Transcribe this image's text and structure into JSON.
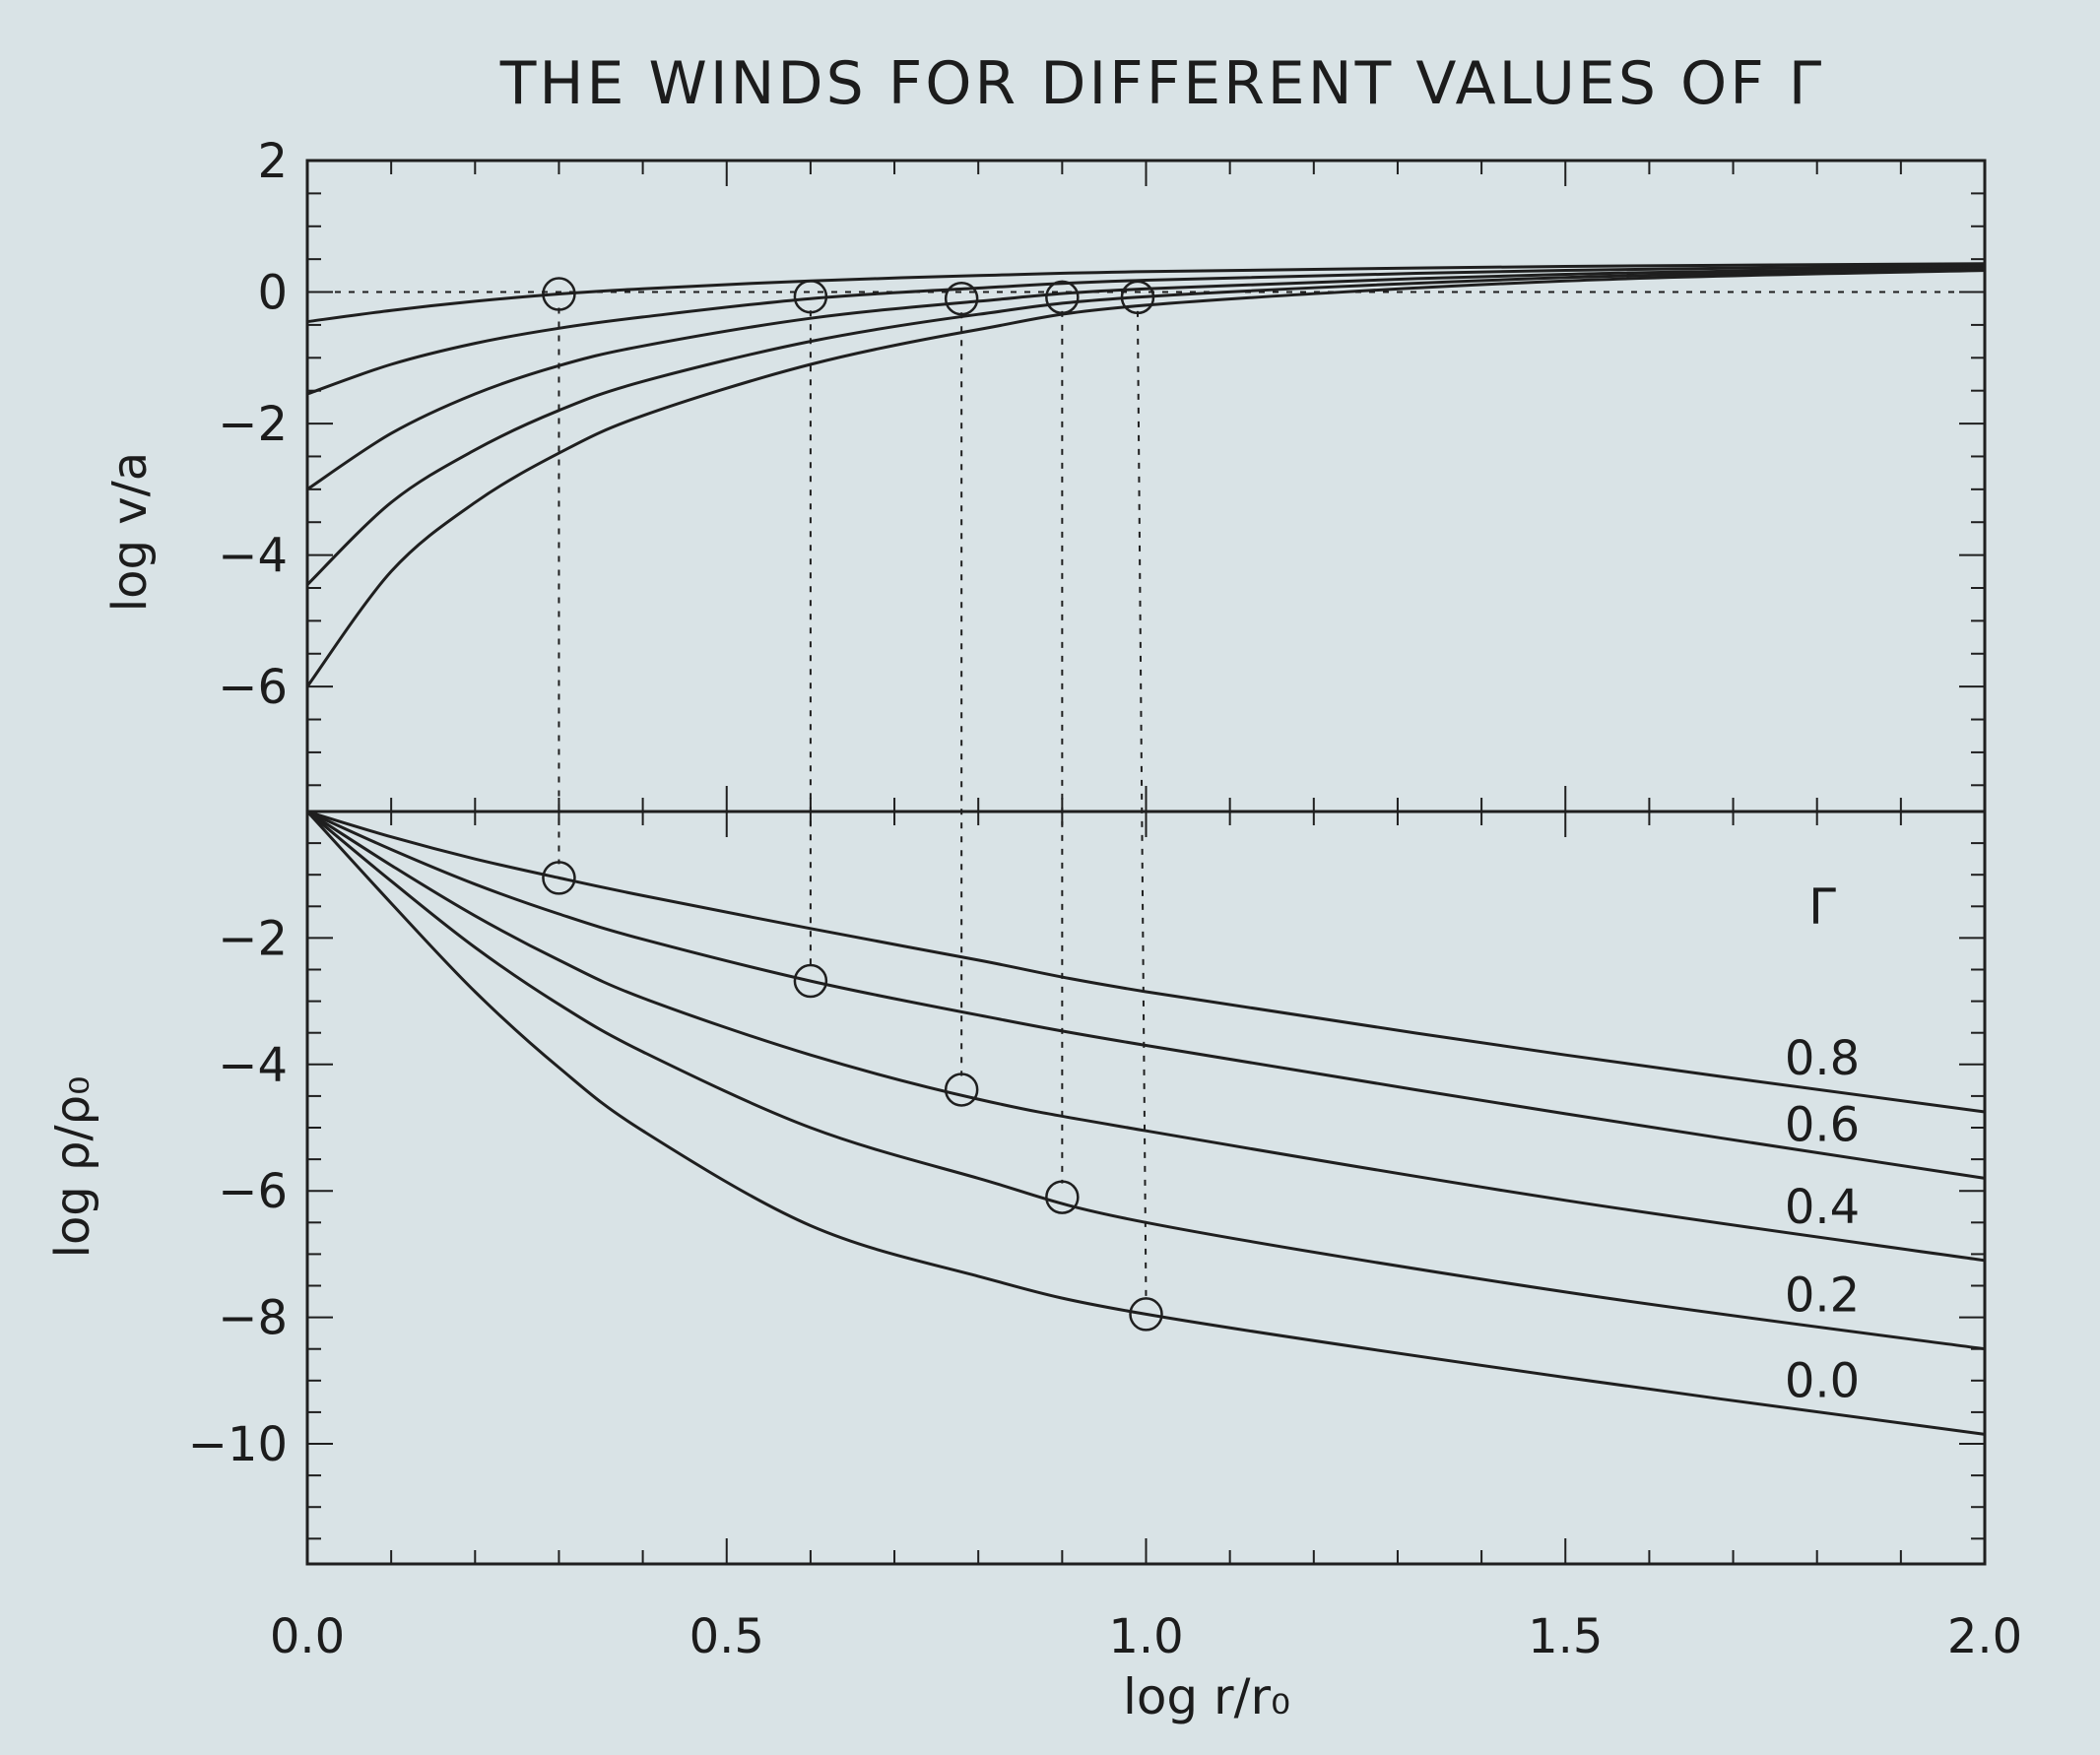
{
  "title": "THE WINDS FOR DIFFERENT VALUES OF Γ",
  "chart_data": [
    {
      "type": "line",
      "panel": "top",
      "ylabel": "log v/a",
      "ylim": [
        -7.9,
        2.0
      ],
      "xlim": [
        0.0,
        2.0
      ],
      "y_ticks": [
        2,
        0,
        -2,
        -4,
        -6
      ],
      "y_tick_labels": [
        "2",
        "0",
        "−2",
        "−4",
        "−6"
      ],
      "reference_line_y": 0.0,
      "series": [
        {
          "name": "0.8",
          "x": [
            0.0,
            0.1,
            0.2,
            0.3,
            0.4,
            0.6,
            0.8,
            1.0,
            1.5,
            2.0
          ],
          "values": [
            -0.45,
            -0.28,
            -0.14,
            -0.03,
            0.05,
            0.17,
            0.25,
            0.31,
            0.39,
            0.43
          ]
        },
        {
          "name": "0.6",
          "x": [
            0.0,
            0.1,
            0.2,
            0.3,
            0.4,
            0.6,
            0.8,
            1.0,
            1.5,
            2.0
          ],
          "values": [
            -1.55,
            -1.1,
            -0.78,
            -0.55,
            -0.38,
            -0.1,
            0.06,
            0.18,
            0.33,
            0.4
          ]
        },
        {
          "name": "0.4",
          "x": [
            0.0,
            0.1,
            0.2,
            0.3,
            0.4,
            0.6,
            0.8,
            1.0,
            1.5,
            2.0
          ],
          "values": [
            -3.0,
            -2.15,
            -1.55,
            -1.12,
            -0.82,
            -0.4,
            -0.14,
            0.05,
            0.27,
            0.37
          ]
        },
        {
          "name": "0.2",
          "x": [
            0.0,
            0.1,
            0.2,
            0.3,
            0.4,
            0.6,
            0.8,
            1.0,
            1.5,
            2.0
          ],
          "values": [
            -4.45,
            -3.2,
            -2.4,
            -1.8,
            -1.36,
            -0.75,
            -0.34,
            -0.07,
            0.22,
            0.35
          ]
        },
        {
          "name": "0.0",
          "x": [
            0.0,
            0.1,
            0.2,
            0.3,
            0.4,
            0.6,
            0.8,
            1.0,
            1.5,
            2.0
          ],
          "values": [
            -6.0,
            -4.25,
            -3.2,
            -2.45,
            -1.88,
            -1.1,
            -0.57,
            -0.2,
            0.17,
            0.33
          ]
        }
      ],
      "markers": {
        "x": [
          0.3,
          0.6,
          0.78,
          0.9,
          0.99
        ],
        "values": [
          -0.03,
          -0.07,
          -0.1,
          -0.08,
          -0.08
        ]
      }
    },
    {
      "type": "line",
      "panel": "bottom",
      "xlabel": "log r/r₀",
      "ylabel": "log ρ/ρ₀",
      "xlim": [
        0.0,
        2.0
      ],
      "ylim": [
        -11.9,
        0.0
      ],
      "x_ticks": [
        0.0,
        0.5,
        1.0,
        1.5,
        2.0
      ],
      "x_tick_labels": [
        "0.0",
        "0.5",
        "1.0",
        "1.5",
        "2.0"
      ],
      "y_ticks": [
        -2,
        -4,
        -6,
        -8,
        -10
      ],
      "y_tick_labels": [
        "−2",
        "−4",
        "−6",
        "−8",
        "−10"
      ],
      "legend_title": "Γ",
      "legend_placement": "right",
      "series": [
        {
          "name": "0.8",
          "label": "0.8",
          "x": [
            0.0,
            0.1,
            0.2,
            0.3,
            0.4,
            0.6,
            0.8,
            1.0,
            1.5,
            2.0
          ],
          "values": [
            0.0,
            -0.4,
            -0.75,
            -1.05,
            -1.33,
            -1.85,
            -2.35,
            -2.85,
            -3.85,
            -4.75
          ]
        },
        {
          "name": "0.6",
          "label": "0.6",
          "x": [
            0.0,
            0.1,
            0.2,
            0.3,
            0.4,
            0.6,
            0.8,
            1.0,
            1.5,
            2.0
          ],
          "values": [
            0.0,
            -0.6,
            -1.15,
            -1.62,
            -2.02,
            -2.68,
            -3.22,
            -3.7,
            -4.78,
            -5.8
          ]
        },
        {
          "name": "0.4",
          "label": "0.4",
          "x": [
            0.0,
            0.1,
            0.2,
            0.3,
            0.4,
            0.6,
            0.8,
            1.0,
            1.5,
            2.0
          ],
          "values": [
            0.0,
            -0.85,
            -1.65,
            -2.35,
            -2.95,
            -3.85,
            -4.55,
            -5.05,
            -6.15,
            -7.1
          ]
        },
        {
          "name": "0.2",
          "label": "0.2",
          "x": [
            0.0,
            0.1,
            0.2,
            0.3,
            0.4,
            0.6,
            0.8,
            1.0,
            1.5,
            2.0
          ],
          "values": [
            0.0,
            -1.1,
            -2.15,
            -3.05,
            -3.8,
            -5.0,
            -5.8,
            -6.5,
            -7.6,
            -8.5
          ]
        },
        {
          "name": "0.0",
          "label": "0.0",
          "x": [
            0.0,
            0.1,
            0.2,
            0.3,
            0.4,
            0.6,
            0.8,
            1.0,
            1.5,
            2.0
          ],
          "values": [
            0.0,
            -1.45,
            -2.85,
            -4.05,
            -5.05,
            -6.55,
            -7.35,
            -7.95,
            -8.95,
            -9.85
          ]
        }
      ],
      "markers": {
        "x": [
          0.3,
          0.6,
          0.78,
          0.9,
          1.0
        ],
        "values": [
          -1.05,
          -2.68,
          -4.4,
          -6.1,
          -7.95
        ]
      }
    }
  ]
}
